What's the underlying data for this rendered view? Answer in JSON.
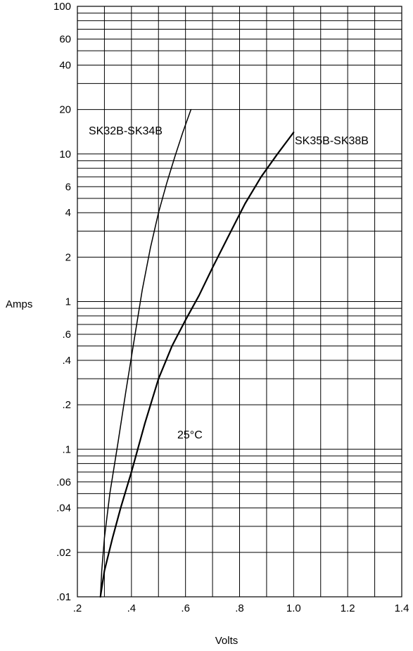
{
  "chart_data": {
    "type": "line",
    "title": "",
    "xlabel": "Volts",
    "ylabel": "Amps",
    "x_scale": "linear",
    "y_scale": "log",
    "xlim": [
      0.2,
      1.4
    ],
    "ylim": [
      0.01,
      100
    ],
    "grid": true,
    "x_ticks": [
      0.2,
      0.4,
      0.6,
      0.8,
      1.0,
      1.2,
      1.4
    ],
    "x_tick_labels": [
      ".2",
      ".4",
      ".6",
      ".8",
      "1.0",
      "1.2",
      "1.4"
    ],
    "y_ticks": [
      0.01,
      0.02,
      0.04,
      0.06,
      0.1,
      0.2,
      0.4,
      0.6,
      1,
      2,
      4,
      6,
      10,
      20,
      40,
      60,
      100
    ],
    "y_tick_labels": [
      ".01",
      ".02",
      ".04",
      ".06",
      ".1",
      ".2",
      ".4",
      ".6",
      "1",
      "2",
      "4",
      "6",
      "10",
      "20",
      "40",
      "60",
      "100"
    ],
    "annotations": [
      "25°C"
    ],
    "series": [
      {
        "name": "SK32B-SK34B",
        "x": [
          0.285,
          0.29,
          0.3,
          0.32,
          0.35,
          0.38,
          0.41,
          0.44,
          0.47,
          0.5,
          0.53,
          0.56,
          0.59,
          0.62
        ],
        "y": [
          0.01,
          0.015,
          0.025,
          0.05,
          0.11,
          0.25,
          0.55,
          1.2,
          2.3,
          4.0,
          6.3,
          9.5,
          14,
          20
        ]
      },
      {
        "name": "SK35B-SK38B",
        "x": [
          0.285,
          0.3,
          0.33,
          0.36,
          0.4,
          0.45,
          0.5,
          0.55,
          0.6,
          0.65,
          0.7,
          0.76,
          0.82,
          0.88,
          0.94,
          1.0
        ],
        "y": [
          0.01,
          0.015,
          0.025,
          0.04,
          0.07,
          0.15,
          0.3,
          0.5,
          0.75,
          1.1,
          1.7,
          2.8,
          4.6,
          7.0,
          10,
          14
        ]
      }
    ]
  }
}
